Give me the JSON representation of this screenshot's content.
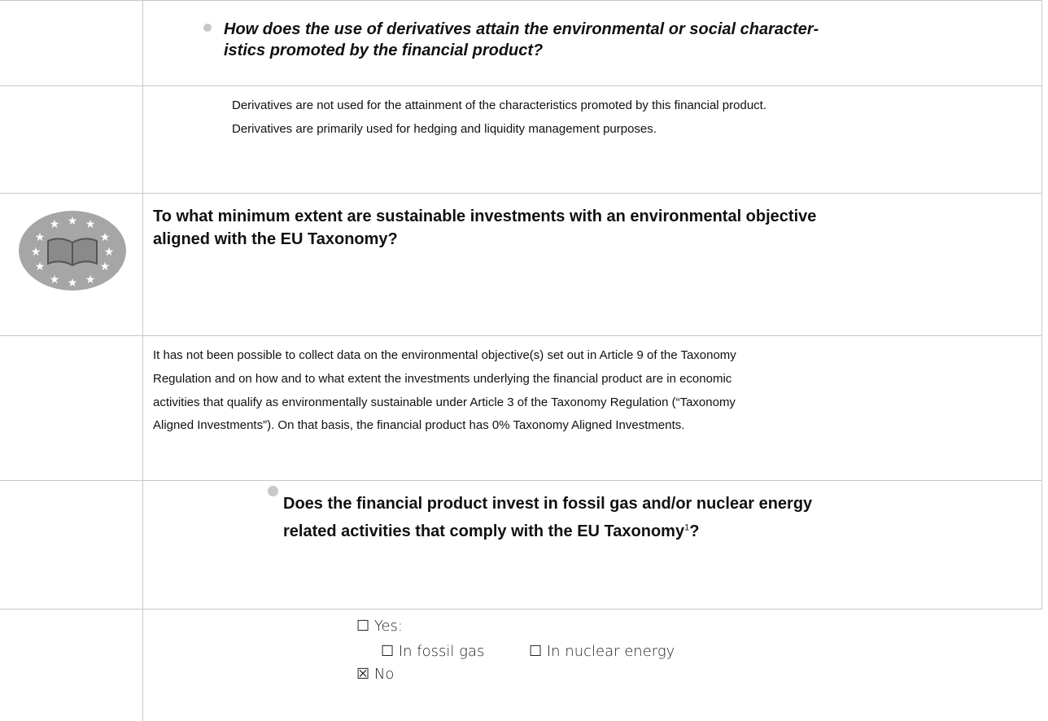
{
  "sections": [
    {
      "question_lines": [
        "How does the use of derivatives attain the environmental or social character-",
        "istics promoted by the financial product?"
      ]
    },
    {
      "answer_lines": [
        "Derivatives are not used for the attainment of the characteristics promoted by this financial product.",
        "Derivatives are primarily used for hedging and liquidity management purposes."
      ]
    },
    {
      "question_lines": [
        "To what minimum extent are sustainable investments with an environmental objective",
        "aligned with the EU Taxonomy?"
      ]
    },
    {
      "answer_lines": [
        "It has not been possible to collect data on the environmental objective(s) set out in Article 9 of the Taxonomy",
        "Regulation and on how and to what extent the investments underlying the financial product are in economic",
        "activities that qualify as environmentally sustainable under Article 3 of the Taxonomy Regulation (“Taxonomy",
        "Aligned Investments”). On that basis, the financial product has 0% Taxonomy Aligned Investments."
      ]
    },
    {
      "question_lines": [
        "Does the financial product invest in fossil gas and/or nuclear energy",
        "related activities that comply with the EU Taxonomy"
      ],
      "footnote": "1",
      "question_end": "?"
    },
    {
      "options": [
        "☐ Yes:",
        "☐ In fossil gas",
        "☐ In nuclear energy",
        "☒ No"
      ]
    }
  ]
}
